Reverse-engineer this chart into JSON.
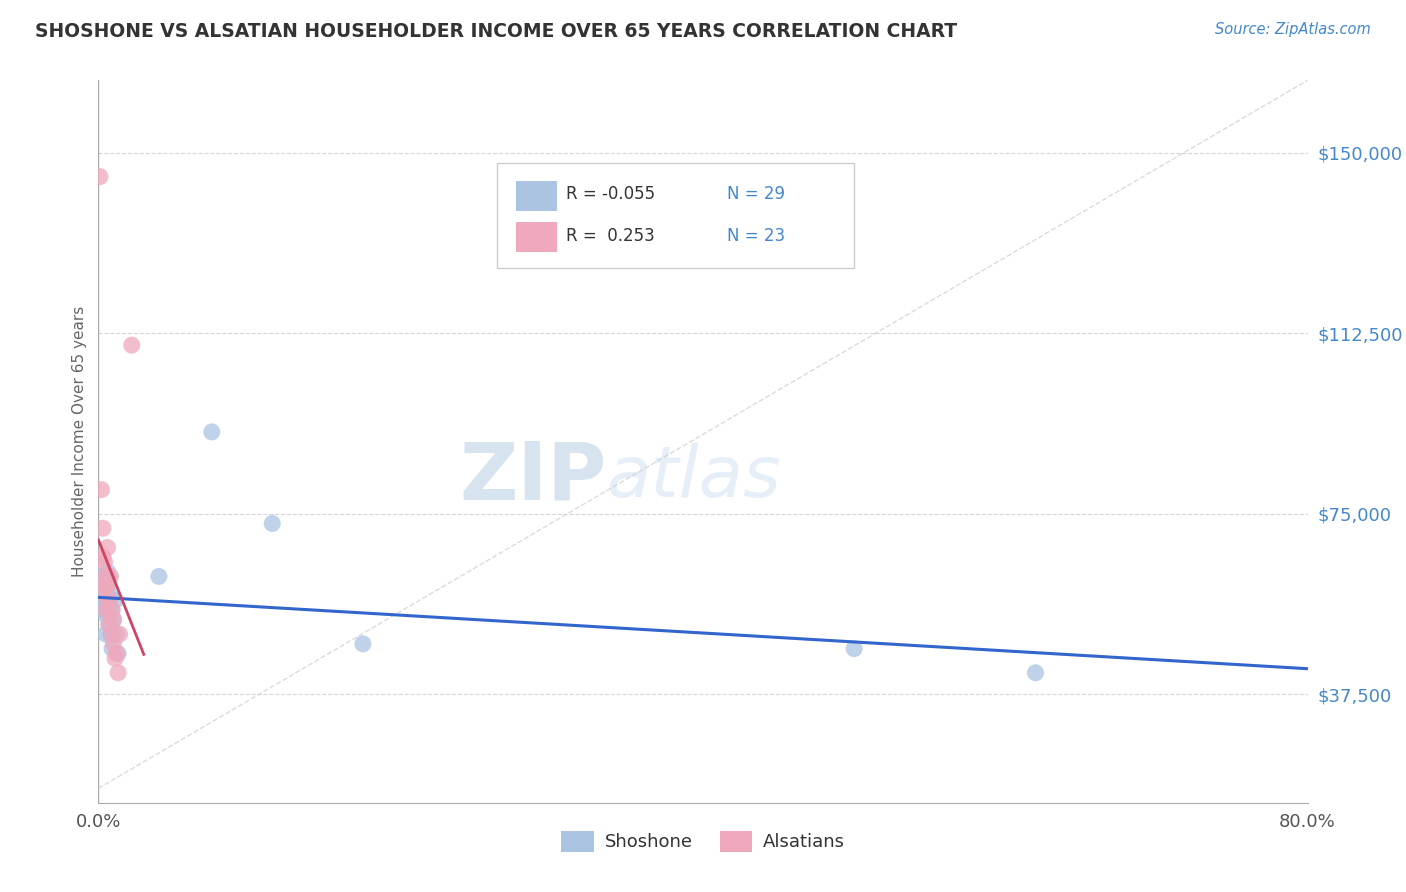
{
  "title": "SHOSHONE VS ALSATIAN HOUSEHOLDER INCOME OVER 65 YEARS CORRELATION CHART",
  "source": "Source: ZipAtlas.com",
  "ylabel": "Householder Income Over 65 years",
  "xlim": [
    0.0,
    0.8
  ],
  "ylim": [
    15000,
    165000
  ],
  "yticks": [
    37500,
    75000,
    112500,
    150000
  ],
  "ytick_labels": [
    "$37,500",
    "$75,000",
    "$112,500",
    "$150,000"
  ],
  "xtick_left": "0.0%",
  "xtick_right": "80.0%",
  "shoshone_r": "-0.055",
  "shoshone_n": "29",
  "alsatian_r": "0.253",
  "alsatian_n": "23",
  "shoshone_color": "#aac4e2",
  "alsatian_color": "#f0a8bc",
  "shoshone_line_color": "#3366cc",
  "alsatian_line_color": "#cc4466",
  "background_color": "#ffffff",
  "grid_color": "#cccccc",
  "title_color": "#333333",
  "source_color": "#4488cc",
  "axis_color": "#aaaaaa",
  "watermark_zip": "ZIP",
  "watermark_atlas": "atlas",
  "watermark_color": "#ccddf0",
  "legend_border_color": "#cccccc",
  "shoshone_x": [
    0.002,
    0.002,
    0.003,
    0.003,
    0.004,
    0.004,
    0.005,
    0.005,
    0.005,
    0.006,
    0.006,
    0.006,
    0.007,
    0.007,
    0.007,
    0.008,
    0.008,
    0.009,
    0.009,
    0.01,
    0.011,
    0.012,
    0.013,
    0.04,
    0.075,
    0.115,
    0.175,
    0.5,
    0.62
  ],
  "shoshone_y": [
    62000,
    60000,
    57000,
    55000,
    60000,
    56000,
    58000,
    54000,
    50000,
    63000,
    60000,
    55000,
    62000,
    57000,
    52000,
    58000,
    50000,
    55000,
    47000,
    53000,
    57000,
    50000,
    46000,
    62000,
    92000,
    73000,
    48000,
    47000,
    42000
  ],
  "alsatian_x": [
    0.001,
    0.002,
    0.003,
    0.003,
    0.004,
    0.004,
    0.005,
    0.005,
    0.005,
    0.006,
    0.006,
    0.007,
    0.007,
    0.008,
    0.009,
    0.009,
    0.01,
    0.01,
    0.011,
    0.012,
    0.013,
    0.014,
    0.022
  ],
  "alsatian_y": [
    145000,
    80000,
    72000,
    66000,
    65000,
    60000,
    62000,
    58000,
    55000,
    68000,
    60000,
    57000,
    52000,
    62000,
    55000,
    50000,
    53000,
    48000,
    45000,
    46000,
    42000,
    50000,
    110000
  ],
  "diag_line_color": "#cccccc",
  "diag_line_style": "--"
}
